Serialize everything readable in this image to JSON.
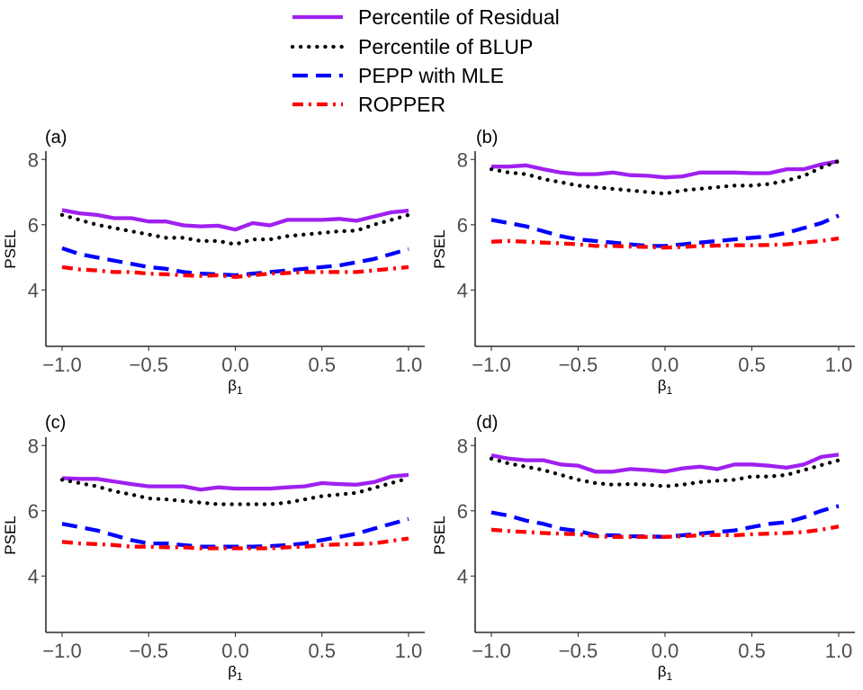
{
  "legend": {
    "items": [
      {
        "label": "Percentile of Residual",
        "color": "#a020f0",
        "dash": "solid"
      },
      {
        "label": "Percentile of BLUP",
        "color": "#000000",
        "dash": "dotted"
      },
      {
        "label": "PEPP with MLE",
        "color": "#0000ff",
        "dash": "dashed"
      },
      {
        "label": "ROPPER",
        "color": "#ff0000",
        "dash": "dotdash"
      }
    ]
  },
  "chart_data": [
    {
      "type": "line",
      "panel": "(a)",
      "title": "(a)",
      "xlabel": "β1",
      "ylabel": "PSEL",
      "xlim": [
        -1.0,
        1.0
      ],
      "ylim": [
        2.3,
        8.2
      ],
      "xticks": [
        "−1.0",
        "−0.5",
        "0.0",
        "0.5",
        "1.0"
      ],
      "yticks": [
        "4",
        "6",
        "8"
      ],
      "x": [
        -1.0,
        -0.9,
        -0.8,
        -0.7,
        -0.6,
        -0.5,
        -0.4,
        -0.3,
        -0.2,
        -0.1,
        0.0,
        0.1,
        0.2,
        0.3,
        0.4,
        0.5,
        0.6,
        0.7,
        0.8,
        0.9,
        1.0
      ],
      "series": [
        {
          "name": "Percentile of Residual",
          "values": [
            6.45,
            6.35,
            6.3,
            6.2,
            6.2,
            6.1,
            6.1,
            5.98,
            5.95,
            5.97,
            5.85,
            6.05,
            5.98,
            6.15,
            6.15,
            6.15,
            6.18,
            6.12,
            6.25,
            6.38,
            6.43
          ]
        },
        {
          "name": "Percentile of BLUP",
          "values": [
            6.3,
            6.15,
            6.0,
            5.9,
            5.8,
            5.7,
            5.6,
            5.6,
            5.5,
            5.5,
            5.4,
            5.55,
            5.55,
            5.65,
            5.7,
            5.75,
            5.8,
            5.82,
            6.0,
            6.15,
            6.3
          ]
        },
        {
          "name": "PEPP with MLE",
          "values": [
            5.28,
            5.1,
            5.0,
            4.9,
            4.8,
            4.7,
            4.65,
            4.55,
            4.5,
            4.48,
            4.45,
            4.5,
            4.55,
            4.6,
            4.65,
            4.7,
            4.75,
            4.85,
            4.95,
            5.1,
            5.25
          ]
        },
        {
          "name": "ROPPER",
          "values": [
            4.7,
            4.63,
            4.6,
            4.55,
            4.55,
            4.5,
            4.48,
            4.45,
            4.43,
            4.45,
            4.4,
            4.45,
            4.5,
            4.52,
            4.55,
            4.55,
            4.55,
            4.55,
            4.6,
            4.65,
            4.7
          ]
        }
      ]
    },
    {
      "type": "line",
      "panel": "(b)",
      "title": "(b)",
      "xlabel": "β1",
      "ylabel": "PSEL",
      "xlim": [
        -1.0,
        1.0
      ],
      "ylim": [
        2.3,
        8.2
      ],
      "xticks": [
        "−1.0",
        "−0.5",
        "0.0",
        "0.5",
        "1.0"
      ],
      "yticks": [
        "4",
        "6",
        "8"
      ],
      "x": [
        -1.0,
        -0.9,
        -0.8,
        -0.7,
        -0.6,
        -0.5,
        -0.4,
        -0.3,
        -0.2,
        -0.1,
        0.0,
        0.1,
        0.2,
        0.3,
        0.4,
        0.5,
        0.6,
        0.7,
        0.8,
        0.9,
        1.0
      ],
      "series": [
        {
          "name": "Percentile of Residual",
          "values": [
            7.78,
            7.78,
            7.82,
            7.7,
            7.6,
            7.55,
            7.55,
            7.6,
            7.52,
            7.5,
            7.45,
            7.48,
            7.6,
            7.6,
            7.6,
            7.58,
            7.58,
            7.7,
            7.7,
            7.85,
            7.95
          ]
        },
        {
          "name": "Percentile of BLUP",
          "values": [
            7.7,
            7.6,
            7.55,
            7.4,
            7.3,
            7.2,
            7.15,
            7.1,
            7.05,
            7.0,
            6.95,
            7.05,
            7.1,
            7.15,
            7.2,
            7.2,
            7.25,
            7.35,
            7.5,
            7.75,
            7.95
          ]
        },
        {
          "name": "PEPP with MLE",
          "values": [
            6.15,
            6.05,
            5.95,
            5.8,
            5.65,
            5.55,
            5.5,
            5.45,
            5.4,
            5.35,
            5.35,
            5.4,
            5.45,
            5.5,
            5.55,
            5.6,
            5.65,
            5.75,
            5.9,
            6.05,
            6.28
          ]
        },
        {
          "name": "ROPPER",
          "values": [
            5.48,
            5.5,
            5.48,
            5.45,
            5.43,
            5.4,
            5.35,
            5.35,
            5.33,
            5.32,
            5.3,
            5.32,
            5.35,
            5.36,
            5.37,
            5.37,
            5.38,
            5.4,
            5.45,
            5.5,
            5.58
          ]
        }
      ]
    },
    {
      "type": "line",
      "panel": "(c)",
      "title": "(c)",
      "xlabel": "β1",
      "ylabel": "PSEL",
      "xlim": [
        -1.0,
        1.0
      ],
      "ylim": [
        2.3,
        8.2
      ],
      "xticks": [
        "−1.0",
        "−0.5",
        "0.0",
        "0.5",
        "1.0"
      ],
      "yticks": [
        "4",
        "6",
        "8"
      ],
      "x": [
        -1.0,
        -0.9,
        -0.8,
        -0.7,
        -0.6,
        -0.5,
        -0.4,
        -0.3,
        -0.2,
        -0.1,
        0.0,
        0.1,
        0.2,
        0.3,
        0.4,
        0.5,
        0.6,
        0.7,
        0.8,
        0.9,
        1.0
      ],
      "series": [
        {
          "name": "Percentile of Residual",
          "values": [
            7.0,
            6.98,
            6.98,
            6.9,
            6.82,
            6.75,
            6.75,
            6.75,
            6.65,
            6.72,
            6.68,
            6.68,
            6.68,
            6.72,
            6.75,
            6.85,
            6.82,
            6.8,
            6.88,
            7.05,
            7.1
          ]
        },
        {
          "name": "Percentile of BLUP",
          "values": [
            6.95,
            6.85,
            6.75,
            6.6,
            6.5,
            6.38,
            6.35,
            6.3,
            6.25,
            6.2,
            6.2,
            6.2,
            6.2,
            6.25,
            6.35,
            6.45,
            6.5,
            6.55,
            6.7,
            6.85,
            7.0
          ]
        },
        {
          "name": "PEPP with MLE",
          "values": [
            5.6,
            5.5,
            5.4,
            5.25,
            5.1,
            5.0,
            5.0,
            4.95,
            4.9,
            4.9,
            4.9,
            4.9,
            4.92,
            4.95,
            5.0,
            5.1,
            5.2,
            5.3,
            5.45,
            5.6,
            5.75
          ]
        },
        {
          "name": "ROPPER",
          "values": [
            5.05,
            5.0,
            4.98,
            4.95,
            4.9,
            4.9,
            4.88,
            4.88,
            4.85,
            4.85,
            4.85,
            4.85,
            4.85,
            4.88,
            4.9,
            4.95,
            4.97,
            4.98,
            5.0,
            5.08,
            5.15
          ]
        }
      ]
    },
    {
      "type": "line",
      "panel": "(d)",
      "title": "(d)",
      "xlabel": "β1",
      "ylabel": "PSEL",
      "xlim": [
        -1.0,
        1.0
      ],
      "ylim": [
        2.3,
        8.2
      ],
      "xticks": [
        "−1.0",
        "−0.5",
        "0.0",
        "0.5",
        "1.0"
      ],
      "yticks": [
        "4",
        "6",
        "8"
      ],
      "x": [
        -1.0,
        -0.9,
        -0.8,
        -0.7,
        -0.6,
        -0.5,
        -0.4,
        -0.3,
        -0.2,
        -0.1,
        0.0,
        0.1,
        0.2,
        0.3,
        0.4,
        0.5,
        0.6,
        0.7,
        0.8,
        0.9,
        1.0
      ],
      "series": [
        {
          "name": "Percentile of Residual",
          "values": [
            7.7,
            7.6,
            7.55,
            7.55,
            7.42,
            7.38,
            7.2,
            7.2,
            7.28,
            7.25,
            7.2,
            7.3,
            7.35,
            7.28,
            7.42,
            7.42,
            7.38,
            7.32,
            7.42,
            7.65,
            7.72
          ]
        },
        {
          "name": "Percentile of BLUP",
          "values": [
            7.6,
            7.45,
            7.35,
            7.25,
            7.1,
            6.95,
            6.85,
            6.8,
            6.82,
            6.8,
            6.75,
            6.8,
            6.88,
            6.92,
            6.95,
            7.05,
            7.05,
            7.1,
            7.25,
            7.4,
            7.55
          ]
        },
        {
          "name": "PEPP with MLE",
          "values": [
            5.95,
            5.85,
            5.7,
            5.6,
            5.45,
            5.38,
            5.25,
            5.25,
            5.22,
            5.22,
            5.2,
            5.25,
            5.3,
            5.35,
            5.4,
            5.5,
            5.6,
            5.65,
            5.8,
            6.0,
            6.15
          ]
        },
        {
          "name": "ROPPER",
          "values": [
            5.42,
            5.38,
            5.35,
            5.32,
            5.3,
            5.28,
            5.22,
            5.2,
            5.2,
            5.2,
            5.2,
            5.22,
            5.25,
            5.26,
            5.25,
            5.28,
            5.3,
            5.32,
            5.35,
            5.42,
            5.52
          ]
        }
      ]
    }
  ]
}
